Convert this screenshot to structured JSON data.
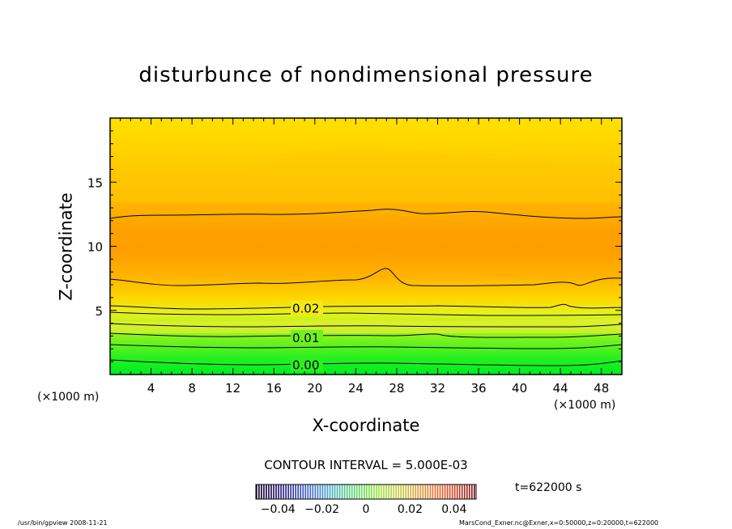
{
  "chart_data": {
    "type": "contour",
    "title": "disturbunce of nondimensional pressure",
    "xlabel": "X-coordinate",
    "ylabel": "Z-coordinate",
    "x_unit_label": "(×1000 m)",
    "x_ticks": [
      4,
      8,
      12,
      16,
      20,
      24,
      28,
      32,
      36,
      40,
      44,
      48
    ],
    "y_ticks": [
      5,
      10,
      15
    ],
    "xlim": [
      0,
      50
    ],
    "ylim": [
      0,
      20
    ],
    "contour_interval_label": "CONTOUR INTERVAL = 5.000E-03",
    "contour_labels": [
      {
        "text": "0.02",
        "x": 17.8,
        "z": 5.2
      },
      {
        "text": "0.01",
        "x": 17.8,
        "z": 2.9
      },
      {
        "text": "0.00",
        "x": 17.8,
        "z": 0.8
      }
    ],
    "colorbar": {
      "ticks": [
        "−0.04",
        "−0.02",
        "0",
        "0.02",
        "0.04"
      ],
      "range": [
        -0.05,
        0.05
      ]
    },
    "time_label": "t=622000 s",
    "footer_left": "/usr/bin/gpview   2008-11-21",
    "footer_right": "MarsCond_Exner.nc@Exner,x=0:50000,z=0:20000,t=622000",
    "colors": {
      "bottom": "#00ee22",
      "low": "#9cf21e",
      "mid": "#ffd800",
      "high": "#ff9e00",
      "top": "#ffde00"
    }
  }
}
